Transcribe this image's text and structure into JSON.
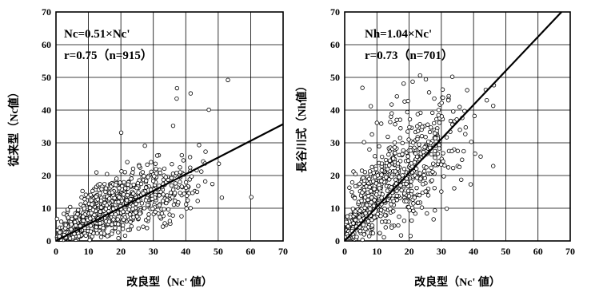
{
  "chart_data": [
    {
      "type": "scatter",
      "xlabel": "改良型（Nc' 値）",
      "ylabel": "従来型（Nc値）",
      "xlim": [
        0,
        70
      ],
      "ylim": [
        0,
        70
      ],
      "xticks": [
        "0",
        "10",
        "20",
        "30",
        "40",
        "50",
        "60",
        "70"
      ],
      "yticks": [
        "0",
        "10",
        "20",
        "30",
        "40",
        "50",
        "60",
        "70"
      ],
      "grid": true,
      "annotation": {
        "equation": "Nc=0.51×Nc'",
        "stats": "r=0.75（n=915）"
      },
      "fit": {
        "slope": 0.51,
        "intercept": 0,
        "r": 0.75,
        "n": 915
      },
      "points": [
        [
          37.3,
          46.7
        ],
        [
          37.2,
          43.5
        ],
        [
          41.5,
          45.1
        ],
        [
          47.1,
          40.1
        ],
        [
          53.0,
          49.2
        ],
        [
          20.1,
          33.1
        ],
        [
          36.1,
          35.2
        ],
        [
          27.4,
          29.1
        ],
        [
          44.1,
          29.3
        ],
        [
          46.1,
          27.3
        ],
        [
          60.2,
          13.4
        ],
        [
          50.2,
          23.6
        ],
        [
          48.2,
          17.4
        ],
        [
          44.8,
          21.2
        ],
        [
          38.3,
          21.0
        ],
        [
          40.6,
          12.4
        ],
        [
          43.5,
          15.0
        ],
        [
          35.6,
          19.2
        ],
        [
          35.1,
          6.1
        ],
        [
          31.2,
          26.1
        ],
        [
          29.3,
          24.1
        ],
        [
          33.4,
          22.1
        ],
        [
          38.2,
          18.0
        ],
        [
          41.8,
          19.7
        ],
        [
          46.0,
          18.2
        ]
      ],
      "cloud": [
        {
          "cx": 0.5,
          "cy": 0.5,
          "sx": 0.4,
          "sy": 0.5,
          "n": 20
        },
        {
          "cx": 2,
          "cy": 1.5,
          "sx": 1.2,
          "sy": 1.2,
          "n": 45
        },
        {
          "cx": 5,
          "cy": 3.5,
          "sx": 2.2,
          "sy": 2.2,
          "n": 80
        },
        {
          "cx": 9,
          "cy": 6,
          "sx": 3,
          "sy": 3,
          "n": 130
        },
        {
          "cx": 14,
          "cy": 8.5,
          "sx": 3.5,
          "sy": 3.8,
          "n": 160
        },
        {
          "cx": 19,
          "cy": 11,
          "sx": 3.8,
          "sy": 4.2,
          "n": 160
        },
        {
          "cx": 24,
          "cy": 12.5,
          "sx": 4,
          "sy": 4.5,
          "n": 130
        },
        {
          "cx": 29,
          "cy": 14.5,
          "sx": 4.2,
          "sy": 5,
          "n": 90
        },
        {
          "cx": 35,
          "cy": 15.5,
          "sx": 4.5,
          "sy": 5,
          "n": 60
        },
        {
          "cx": 42,
          "cy": 17,
          "sx": 4,
          "sy": 4,
          "n": 15
        }
      ]
    },
    {
      "type": "scatter",
      "xlabel": "改良型（Nc' 値）",
      "ylabel": "長谷川式（Nh値）",
      "xlim": [
        0,
        70
      ],
      "ylim": [
        0,
        70
      ],
      "xticks": [
        "0",
        "10",
        "20",
        "30",
        "40",
        "50",
        "60",
        "70"
      ],
      "yticks": [
        "0",
        "10",
        "20",
        "30",
        "40",
        "50",
        "60",
        "70"
      ],
      "grid": true,
      "annotation": {
        "equation": "Nh=1.04×Nc'",
        "stats": "r=0.73（n=701）"
      },
      "fit": {
        "slope": 1.04,
        "intercept": 0,
        "r": 0.73,
        "n": 701
      },
      "points": [
        [
          23.4,
          50.6
        ],
        [
          33.4,
          50.2
        ],
        [
          18.3,
          48.1
        ],
        [
          21.1,
          48.7
        ],
        [
          25.2,
          49.4
        ],
        [
          46.3,
          47.6
        ],
        [
          43.8,
          46.2
        ],
        [
          44.1,
          43.0
        ],
        [
          40.3,
          38.2
        ],
        [
          46.1,
          41.3
        ],
        [
          37.2,
          39.7
        ],
        [
          32.2,
          43.0
        ],
        [
          30.1,
          42.2
        ],
        [
          35.6,
          22.6
        ],
        [
          39.3,
          30.3
        ],
        [
          46.1,
          22.9
        ],
        [
          42.2,
          25.8
        ],
        [
          34.0,
          16.1
        ],
        [
          39.1,
          17.3
        ],
        [
          30.0,
          15.1
        ],
        [
          10.0,
          36.1
        ],
        [
          8.1,
          41.2
        ],
        [
          6.0,
          30.2
        ],
        [
          14.6,
          39.0
        ],
        [
          5.5,
          46.8
        ],
        [
          27.6,
          6.6
        ],
        [
          21.3,
          9.2
        ],
        [
          35.1,
          27.5
        ],
        [
          26.2,
          45.4
        ],
        [
          16.2,
          44.2
        ]
      ],
      "cloud": [
        {
          "cx": 1.5,
          "cy": 3,
          "sx": 1,
          "sy": 2,
          "n": 35
        },
        {
          "cx": 4,
          "cy": 6,
          "sx": 2,
          "sy": 3.5,
          "n": 80
        },
        {
          "cx": 7.5,
          "cy": 10,
          "sx": 3,
          "sy": 5,
          "n": 110
        },
        {
          "cx": 11.5,
          "cy": 14.5,
          "sx": 3.5,
          "sy": 6,
          "n": 120
        },
        {
          "cx": 16,
          "cy": 19,
          "sx": 4,
          "sy": 7,
          "n": 115
        },
        {
          "cx": 20.5,
          "cy": 23,
          "sx": 4,
          "sy": 7.5,
          "n": 100
        },
        {
          "cx": 25,
          "cy": 27,
          "sx": 4,
          "sy": 8,
          "n": 80
        },
        {
          "cx": 30,
          "cy": 30,
          "sx": 4,
          "sy": 8,
          "n": 45
        }
      ]
    }
  ]
}
